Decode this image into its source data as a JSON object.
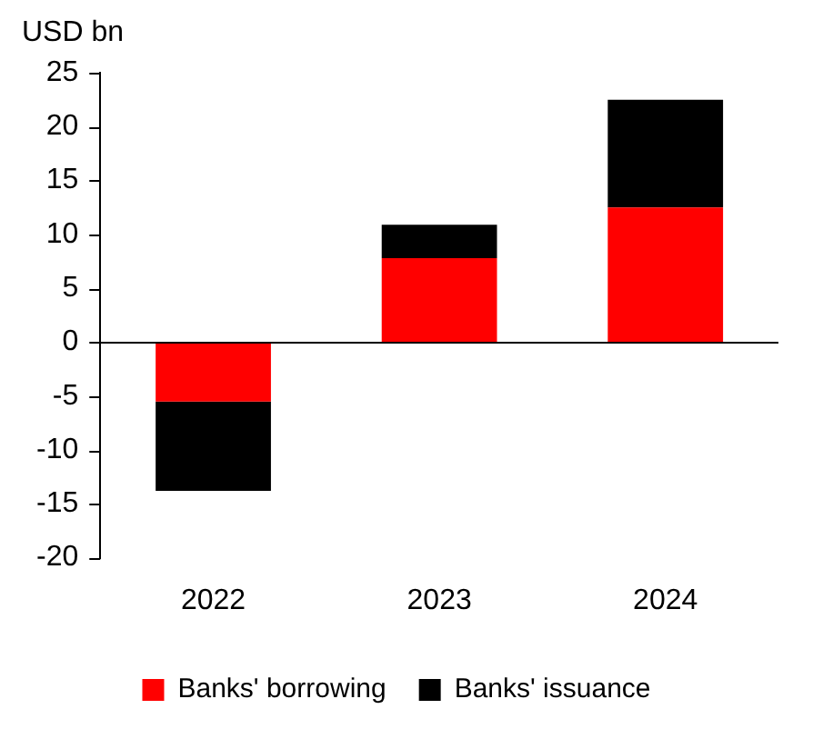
{
  "chart_data": {
    "type": "bar",
    "ylabel": "USD bn",
    "categories": [
      "2022",
      "2023",
      "2024"
    ],
    "stacked": true,
    "series": [
      {
        "name": "Banks' borrowing",
        "color": "#ff0000",
        "values": [
          -5.5,
          7.8,
          12.5
        ]
      },
      {
        "name": "Banks' issuance",
        "color": "#000000",
        "values": [
          -8.3,
          3.1,
          10
        ]
      }
    ],
    "ylim": [
      -20,
      25
    ],
    "yticks": [
      -20,
      -15,
      -10,
      -5,
      0,
      5,
      10,
      15,
      20,
      25
    ],
    "grid": false,
    "ref_lines": [
      {
        "axis": "y",
        "value": 0,
        "color": "#000000"
      }
    ],
    "legend": "bottom"
  }
}
